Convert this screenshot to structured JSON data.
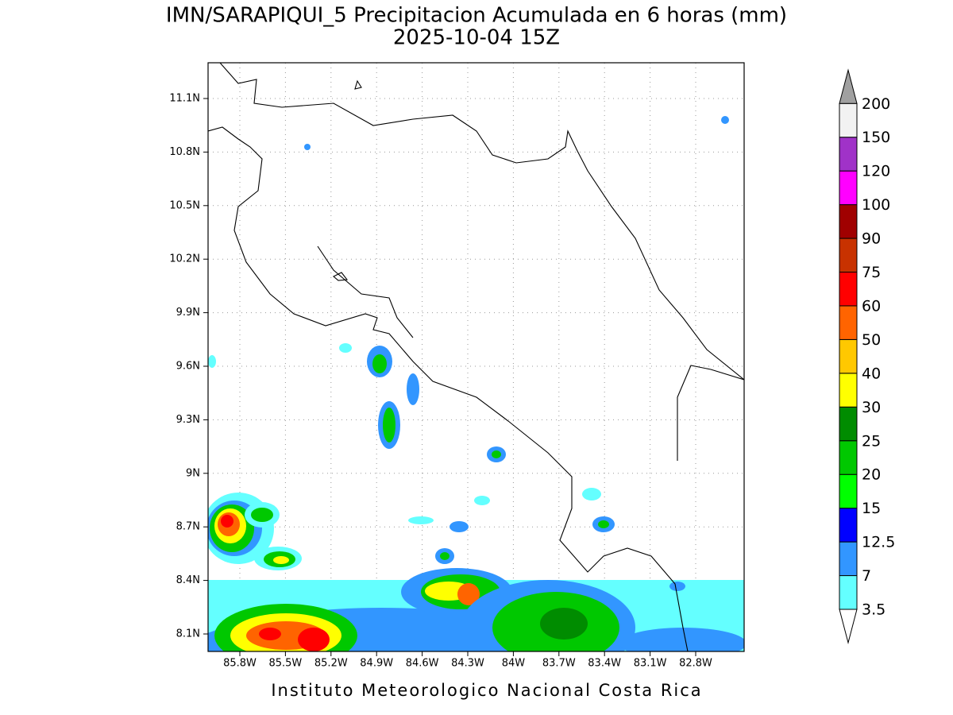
{
  "header": {
    "title": "IMN/SARAPIQUI_5 Precipitacion Acumulada en 6 horas (mm)",
    "subtitle": "2025-10-04 15Z"
  },
  "map": {
    "lon_ticks": [
      "85.8W",
      "85.5W",
      "85.2W",
      "84.9W",
      "84.6W",
      "84.3W",
      "84W",
      "83.7W",
      "83.4W",
      "83.1W",
      "82.8W"
    ],
    "lat_ticks": [
      "11.1N",
      "10.8N",
      "10.5N",
      "10.2N",
      "9.9N",
      "9.6N",
      "9.3N",
      "9N",
      "8.7N",
      "8.4N",
      "8.1N"
    ]
  },
  "colorbar": {
    "labels": [
      "3.5",
      "7",
      "12.5",
      "15",
      "20",
      "25",
      "30",
      "40",
      "50",
      "60",
      "75",
      "90",
      "100",
      "120",
      "150",
      "200"
    ],
    "colors": [
      "#64ffff",
      "#3296ff",
      "#0000ff",
      "#00ff00",
      "#00c800",
      "#008c00",
      "#ffff00",
      "#ffc800",
      "#ff6400",
      "#ff0000",
      "#c83200",
      "#a00000",
      "#ff00ff",
      "#a032c8",
      "#f2f2f2"
    ],
    "over_color": "#a0a0a0",
    "under_color": "#ffffff"
  },
  "footer": "Instituto Meteorologico Nacional Costa Rica"
}
